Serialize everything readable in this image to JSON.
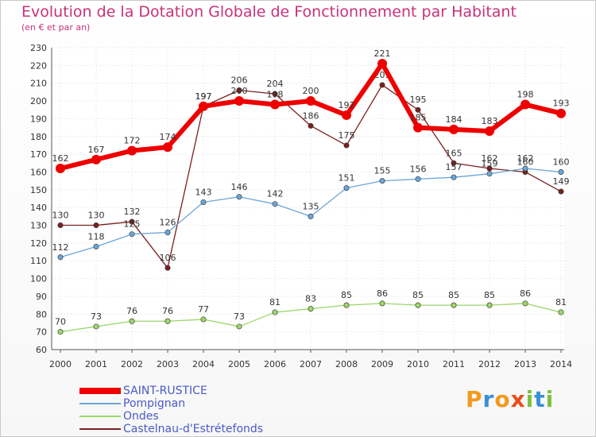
{
  "title": "Evolution de la Dotation Globale de Fonctionnement par Habitant",
  "subtitle": "(en € et par an)",
  "brand": "Proxiti",
  "chart_data": {
    "type": "line",
    "title": "Evolution de la Dotation Globale de Fonctionnement par Habitant",
    "ylabel": "(en € et par an)",
    "xlabel": "",
    "ylim": [
      60,
      230
    ],
    "ytick_step": 10,
    "grid": true,
    "legend_position": "bottom-left",
    "x": [
      "2000",
      "2001",
      "2002",
      "2003",
      "2004",
      "2005",
      "2006",
      "2007",
      "2008",
      "2009",
      "2010",
      "2011",
      "2012",
      "2013",
      "2014"
    ],
    "series": [
      {
        "name": "Castelnau-d'Estrétefonds",
        "color": "#7a2020",
        "values": [
          130,
          130,
          132,
          106,
          197,
          206,
          204,
          186,
          175,
          209,
          195,
          165,
          162,
          160,
          149
        ]
      },
      {
        "name": "Ondes",
        "color": "#9bd66a",
        "values": [
          70,
          73,
          76,
          76,
          77,
          73,
          81,
          83,
          85,
          86,
          85,
          85,
          85,
          86,
          81
        ]
      },
      {
        "name": "Pompignan",
        "color": "#6aa5d8",
        "values": [
          112,
          118,
          125,
          126,
          143,
          146,
          142,
          135,
          151,
          155,
          156,
          157,
          159,
          162,
          160
        ]
      },
      {
        "name": "SAINT-RUSTICE",
        "color": "#ee0000",
        "values": [
          162,
          167,
          172,
          174,
          197,
          200,
          198,
          200,
          192,
          221,
          185,
          184,
          183,
          198,
          193
        ]
      }
    ],
    "legend": [
      "SAINT-RUSTICE",
      "Pompignan",
      "Ondes",
      "Castelnau-d'Estrétefonds"
    ]
  }
}
